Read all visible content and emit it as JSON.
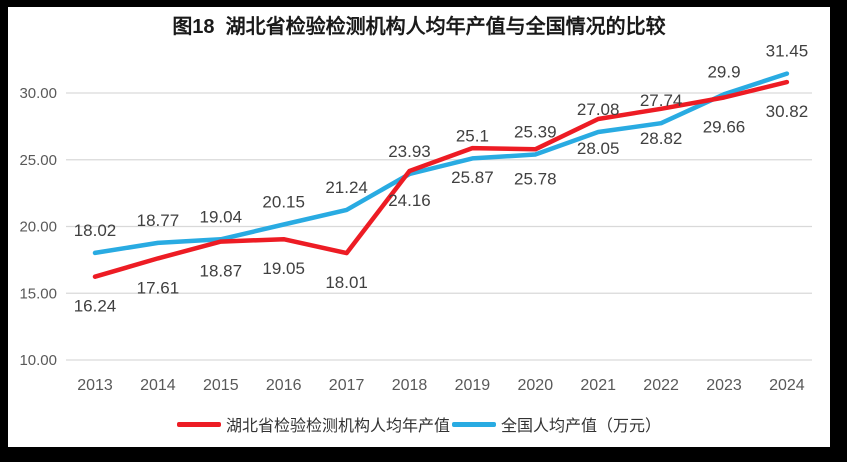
{
  "frame": {
    "background": "#000000",
    "panel_background": "#ffffff",
    "gridline_color": "#d9d9d9",
    "axis_label_color": "#595959",
    "data_label_color": "#404040",
    "title_color": "#1a1a1a"
  },
  "chart_data": {
    "type": "line",
    "title": "图18  湖北省检验检测机构人均年产值与全国情况的比较",
    "categories": [
      "2013",
      "2014",
      "2015",
      "2016",
      "2017",
      "2018",
      "2019",
      "2020",
      "2021",
      "2022",
      "2023",
      "2024"
    ],
    "series": [
      {
        "name": "湖北省检验检测机构人均年产值",
        "color": "#ED1C24",
        "label_position": "below",
        "values": [
          16.24,
          17.61,
          18.87,
          19.05,
          18.01,
          24.16,
          25.87,
          25.78,
          28.05,
          28.82,
          29.66,
          30.82
        ]
      },
      {
        "name": "全国人均产值（万元）",
        "color": "#29ABE2",
        "label_position": "above",
        "values": [
          18.02,
          18.77,
          19.04,
          20.15,
          21.24,
          23.93,
          25.1,
          25.39,
          27.08,
          27.74,
          29.9,
          31.45
        ]
      }
    ],
    "ylim": [
      10,
      32
    ],
    "yticks": [
      10,
      15,
      20,
      25,
      30
    ],
    "ytick_labels": [
      "10.00",
      "15.00",
      "20.00",
      "25.00",
      "30.00"
    ],
    "xlabel": "",
    "ylabel": "",
    "grid": true,
    "legend_position": "bottom"
  }
}
